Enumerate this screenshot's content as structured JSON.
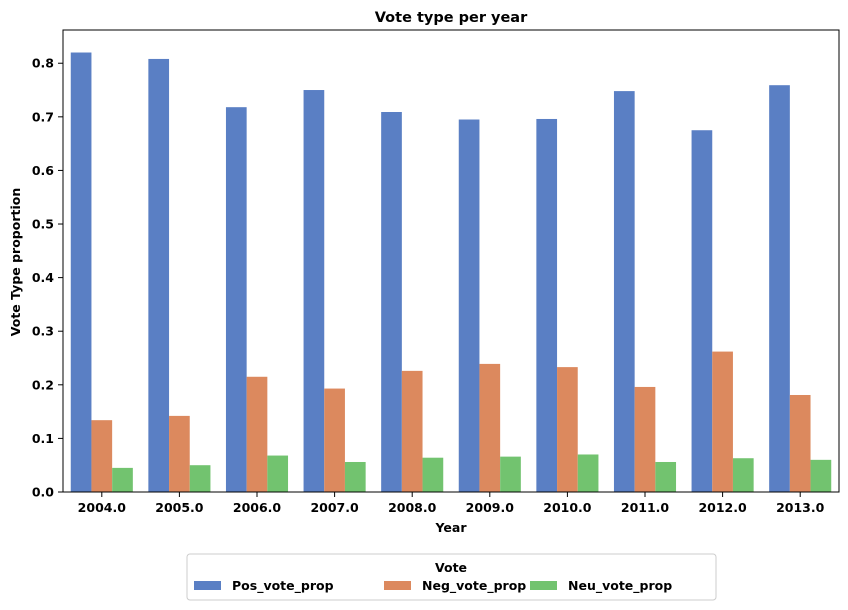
{
  "chart_data": {
    "type": "bar",
    "title": "Vote type per year",
    "xlabel": "Year",
    "ylabel": "Vote Type proportion",
    "ylim": [
      0,
      0.862
    ],
    "yticks": [
      "0.0",
      "0.1",
      "0.2",
      "0.3",
      "0.4",
      "0.5",
      "0.6",
      "0.7",
      "0.8"
    ],
    "categories": [
      "2004.0",
      "2005.0",
      "2006.0",
      "2007.0",
      "2008.0",
      "2009.0",
      "2010.0",
      "2011.0",
      "2012.0",
      "2013.0"
    ],
    "series": [
      {
        "name": "Pos_vote_prop",
        "color": "#5a7fc4",
        "values": [
          0.82,
          0.808,
          0.718,
          0.75,
          0.709,
          0.695,
          0.696,
          0.748,
          0.675,
          0.759
        ]
      },
      {
        "name": "Neg_vote_prop",
        "color": "#dc895e",
        "values": [
          0.134,
          0.142,
          0.215,
          0.193,
          0.226,
          0.239,
          0.233,
          0.196,
          0.262,
          0.181
        ]
      },
      {
        "name": "Neu_vote_prop",
        "color": "#72c36f",
        "values": [
          0.045,
          0.05,
          0.068,
          0.056,
          0.064,
          0.066,
          0.07,
          0.056,
          0.063,
          0.06
        ]
      }
    ],
    "legend": {
      "title": "Vote",
      "placement": "bottom-center"
    },
    "grid": false
  }
}
